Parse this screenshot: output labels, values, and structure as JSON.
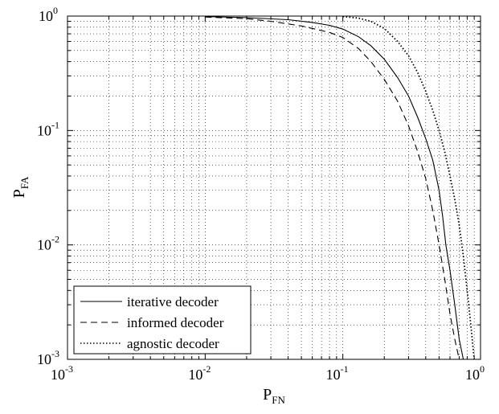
{
  "chart_data": {
    "type": "line",
    "xscale": "log",
    "yscale": "log",
    "xlim": [
      0.001,
      1
    ],
    "ylim": [
      0.001,
      1
    ],
    "grid": true,
    "legend_position": "bottom-left",
    "xlabel": {
      "main": "P",
      "sub": "FN"
    },
    "ylabel": {
      "main": "P",
      "sub": "FA"
    },
    "xticks": [
      {
        "base": "10",
        "exp": "-3",
        "value": 0.001
      },
      {
        "base": "10",
        "exp": "-2",
        "value": 0.01
      },
      {
        "base": "10",
        "exp": "-1",
        "value": 0.1
      },
      {
        "base": "10",
        "exp": "0",
        "value": 1
      }
    ],
    "yticks": [
      {
        "base": "10",
        "exp": "-3",
        "value": 0.001
      },
      {
        "base": "10",
        "exp": "-2",
        "value": 0.01
      },
      {
        "base": "10",
        "exp": "-1",
        "value": 0.1
      },
      {
        "base": "10",
        "exp": "0",
        "value": 1
      }
    ],
    "series": [
      {
        "name": "iterative decoder",
        "style": "solid",
        "points": [
          [
            0.01,
            0.99
          ],
          [
            0.02,
            0.97
          ],
          [
            0.04,
            0.93
          ],
          [
            0.06,
            0.88
          ],
          [
            0.08,
            0.83
          ],
          [
            0.1,
            0.77
          ],
          [
            0.13,
            0.66
          ],
          [
            0.16,
            0.55
          ],
          [
            0.2,
            0.42
          ],
          [
            0.25,
            0.29
          ],
          [
            0.3,
            0.2
          ],
          [
            0.35,
            0.13
          ],
          [
            0.4,
            0.085
          ],
          [
            0.45,
            0.055
          ],
          [
            0.5,
            0.03
          ],
          [
            0.53,
            0.018
          ],
          [
            0.56,
            0.01
          ],
          [
            0.6,
            0.006
          ],
          [
            0.65,
            0.003
          ],
          [
            0.7,
            0.0015
          ],
          [
            0.75,
            0.001
          ]
        ]
      },
      {
        "name": "informed decoder",
        "style": "dashed",
        "points": [
          [
            0.01,
            0.98
          ],
          [
            0.02,
            0.95
          ],
          [
            0.03,
            0.9
          ],
          [
            0.05,
            0.82
          ],
          [
            0.08,
            0.72
          ],
          [
            0.1,
            0.65
          ],
          [
            0.13,
            0.52
          ],
          [
            0.16,
            0.4
          ],
          [
            0.2,
            0.28
          ],
          [
            0.25,
            0.18
          ],
          [
            0.3,
            0.11
          ],
          [
            0.35,
            0.065
          ],
          [
            0.4,
            0.038
          ],
          [
            0.45,
            0.02
          ],
          [
            0.5,
            0.01
          ],
          [
            0.55,
            0.005
          ],
          [
            0.6,
            0.0025
          ],
          [
            0.65,
            0.0015
          ],
          [
            0.7,
            0.001
          ]
        ]
      },
      {
        "name": "agnostic decoder",
        "style": "dotted",
        "points": [
          [
            0.1,
            0.99
          ],
          [
            0.13,
            0.96
          ],
          [
            0.16,
            0.9
          ],
          [
            0.2,
            0.78
          ],
          [
            0.25,
            0.6
          ],
          [
            0.3,
            0.45
          ],
          [
            0.35,
            0.32
          ],
          [
            0.4,
            0.22
          ],
          [
            0.45,
            0.15
          ],
          [
            0.5,
            0.1
          ],
          [
            0.55,
            0.065
          ],
          [
            0.6,
            0.04
          ],
          [
            0.65,
            0.025
          ],
          [
            0.7,
            0.015
          ],
          [
            0.75,
            0.008
          ],
          [
            0.8,
            0.004
          ],
          [
            0.85,
            0.002
          ],
          [
            0.9,
            0.001
          ]
        ]
      }
    ]
  }
}
